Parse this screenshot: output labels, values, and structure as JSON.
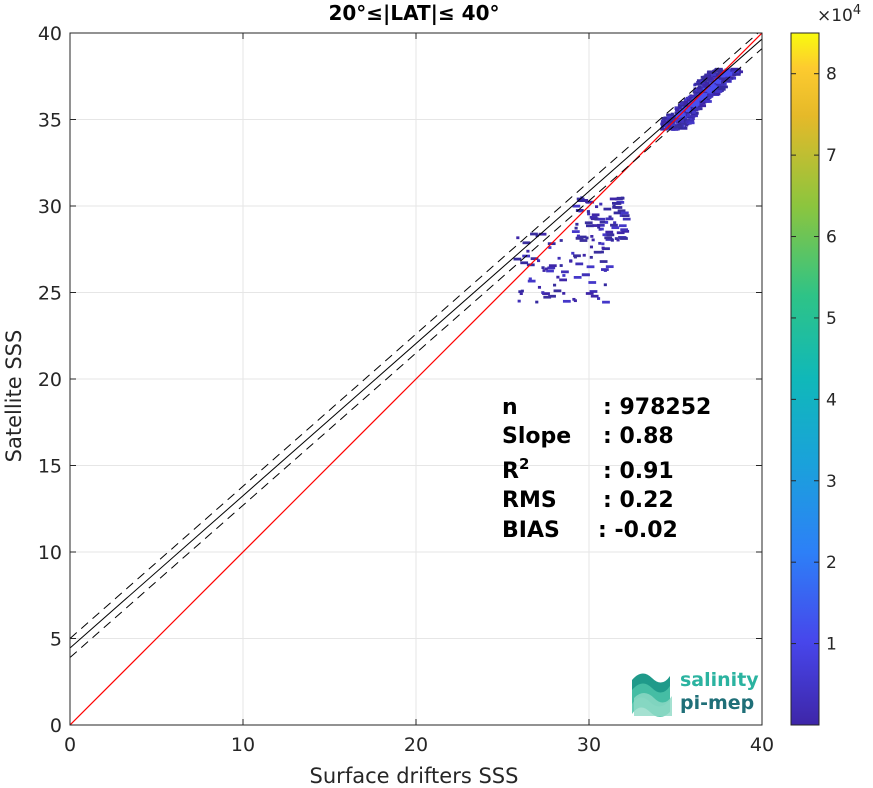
{
  "chart_data": {
    "type": "heatmap",
    "title": "20°≤|LAT|≤ 40°",
    "xlabel": "Surface drifters SSS",
    "ylabel": "Satellite SSS",
    "xlim": [
      0,
      40
    ],
    "ylim": [
      0,
      40
    ],
    "xticks": [
      "0",
      "10",
      "20",
      "30",
      "40"
    ],
    "yticks": [
      "0",
      "5",
      "10",
      "15",
      "20",
      "25",
      "30",
      "35",
      "40"
    ],
    "grid": true,
    "colorbar": {
      "range": [
        0,
        85000
      ],
      "ticks": [
        "1",
        "2",
        "3",
        "4",
        "5",
        "6",
        "7",
        "8"
      ],
      "exponent_prefix": "×10",
      "exponent": "4",
      "colormap": "parula"
    },
    "identity_line": {
      "slope": 1,
      "intercept": 0,
      "color": "#ff0000"
    },
    "fit_line": {
      "slope": 0.88,
      "intercept": 4.45,
      "color": "#000000"
    },
    "fit_bounds": [
      {
        "slope": 0.88,
        "intercept": 5.0
      },
      {
        "slope": 0.88,
        "intercept": 3.9
      }
    ],
    "density_clusters": [
      {
        "x": [
          34.0,
          38.5
        ],
        "y": [
          34.5,
          38.0
        ],
        "peak": "high"
      },
      {
        "x": [
          29.0,
          32.0
        ],
        "y": [
          28.0,
          30.6
        ],
        "peak": "low"
      },
      {
        "x": [
          25.5,
          31.0
        ],
        "y": [
          24.5,
          28.5
        ],
        "peak": "low"
      }
    ],
    "stats": [
      {
        "label": "n",
        "value": ": 978252"
      },
      {
        "label": "Slope",
        "value": ": 0.88"
      },
      {
        "label": "R",
        "sup": "2",
        "value": ": 0.91"
      },
      {
        "label": "RMS",
        "value": ": 0.22"
      },
      {
        "label": "BIAS",
        "value": ": -0.02"
      }
    ]
  },
  "logo": {
    "line1": "salinity",
    "line2": "pi-mep"
  },
  "colors": {
    "identity": "#ff0000",
    "fit": "#000000",
    "grid": "#e6e6e6",
    "density_low": "#3e26a8"
  }
}
